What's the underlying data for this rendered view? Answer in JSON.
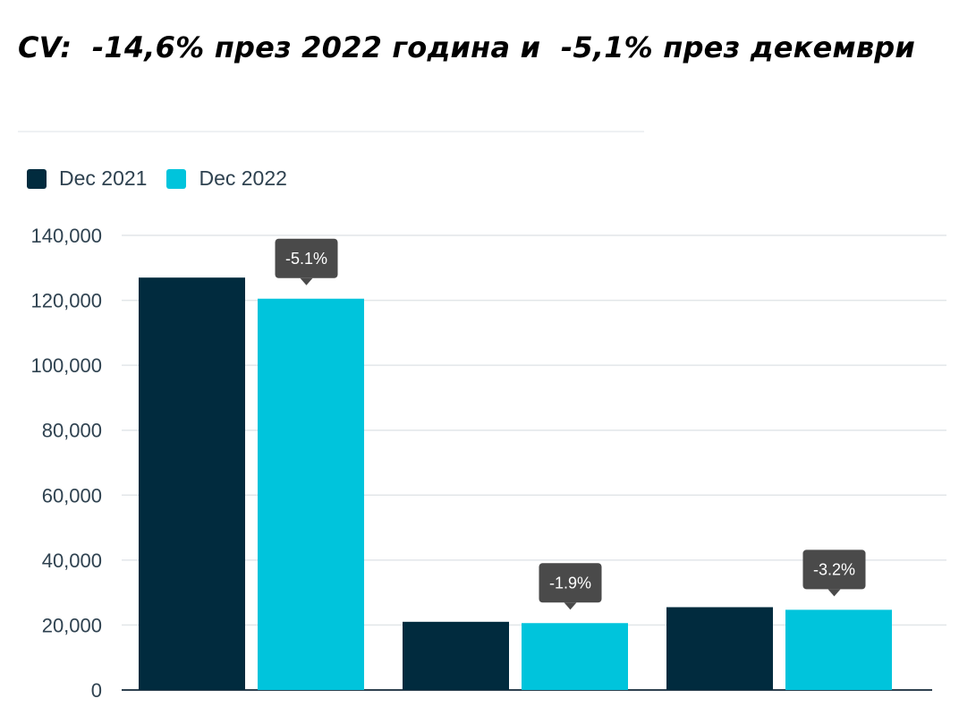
{
  "header": {
    "title": "CV:  -14,6% през 2022 година и  -5,1% през декември"
  },
  "colors": {
    "dec2021": "#012b3e",
    "dec2022": "#00c4dc",
    "grid": "#e2e6e9",
    "axis": "#2f4250",
    "tooltip": "#4a4a4a"
  },
  "chart_data": {
    "type": "bar",
    "title": "",
    "xlabel": "",
    "ylabel": "",
    "categories": [
      "",
      "",
      ""
    ],
    "series": [
      {
        "name": "Dec 2021",
        "values": [
          127000,
          21000,
          25500
        ]
      },
      {
        "name": "Dec 2022",
        "values": [
          120500,
          20600,
          24700
        ]
      }
    ],
    "ylim": [
      0,
      140000
    ],
    "yticks": [
      0,
      20000,
      40000,
      60000,
      80000,
      100000,
      120000,
      140000
    ],
    "ytick_labels": [
      "0",
      "20,000",
      "40,000",
      "60,000",
      "80,000",
      "100,000",
      "120,000",
      "140,000"
    ],
    "grid": true,
    "legend": "top-left",
    "annotations": [
      {
        "category_index": 0,
        "series_index": 1,
        "text": "-5.1%"
      },
      {
        "category_index": 1,
        "series_index": 1,
        "text": "-1.9%"
      },
      {
        "category_index": 2,
        "series_index": 1,
        "text": "-3.2%"
      }
    ]
  }
}
